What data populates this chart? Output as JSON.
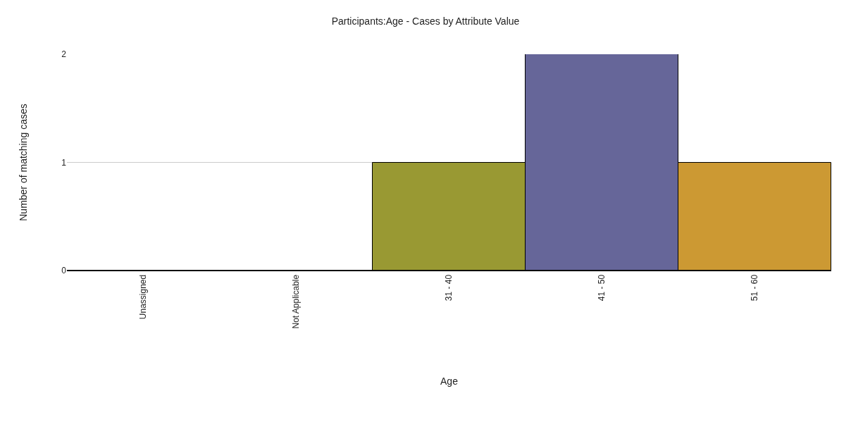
{
  "chart_data": {
    "type": "bar",
    "title": "Participants:Age - Cases by Attribute Value",
    "xlabel": "Age",
    "ylabel": "Number of matching cases",
    "categories": [
      "Unassigned",
      "Not Applicable",
      "31 - 40",
      "41 - 50",
      "51 - 60"
    ],
    "values": [
      0,
      0,
      1,
      2,
      1
    ],
    "colors": [
      null,
      null,
      "#999933",
      "#666699",
      "#cc9933"
    ],
    "ylim": [
      0,
      2
    ],
    "yticks": [
      0,
      1,
      2
    ],
    "grid": "y"
  }
}
